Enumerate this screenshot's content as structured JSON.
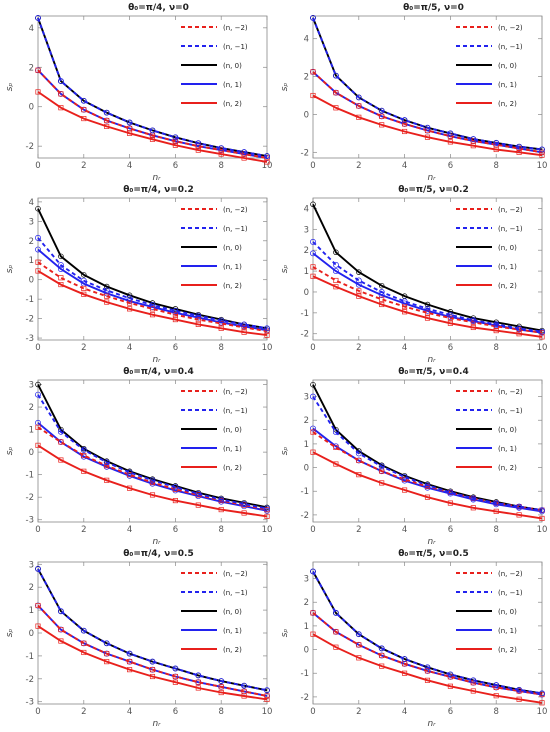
{
  "legend_entries": [
    "(n, −2)",
    "(n, −1)",
    "(n, 0)",
    "(n, 1)",
    "(n, 2)"
  ],
  "series_colors": [
    "#e8201c",
    "#2222ee",
    "#000000",
    "#2222ee",
    "#e8201c"
  ],
  "series_dashed": [
    true,
    true,
    false,
    false,
    false
  ],
  "chart_data": [
    {
      "type": "line",
      "title": "θ₀=π/4, ν=0",
      "xlabel": "nᵣ",
      "ylabel": "sₚ",
      "x": [
        0,
        1,
        2,
        3,
        4,
        5,
        6,
        7,
        8,
        9,
        10
      ],
      "xlim": [
        0,
        10
      ],
      "ylim": [
        -2.6,
        4.6
      ],
      "xticks": [
        "0",
        "2",
        "4",
        "6",
        "8",
        "10"
      ],
      "yticks": [
        "-2",
        "0",
        "2",
        "4"
      ],
      "legend": "top-right",
      "series": [
        {
          "name": "(n, −2)",
          "values": [
            1.85,
            0.65,
            -0.15,
            -0.7,
            -1.1,
            -1.45,
            -1.75,
            -2.0,
            -2.2,
            -2.4,
            -2.6
          ]
        },
        {
          "name": "(n, −1)",
          "values": [
            4.5,
            1.3,
            0.3,
            -0.3,
            -0.8,
            -1.2,
            -1.55,
            -1.85,
            -2.1,
            -2.3,
            -2.5
          ]
        },
        {
          "name": "(n, 0)",
          "values": [
            4.5,
            1.3,
            0.3,
            -0.3,
            -0.8,
            -1.2,
            -1.55,
            -1.85,
            -2.1,
            -2.3,
            -2.5
          ]
        },
        {
          "name": "(n, 1)",
          "values": [
            1.85,
            0.65,
            -0.15,
            -0.7,
            -1.1,
            -1.45,
            -1.75,
            -2.0,
            -2.2,
            -2.4,
            -2.6
          ]
        },
        {
          "name": "(n, 2)",
          "values": [
            0.75,
            -0.05,
            -0.6,
            -1.0,
            -1.35,
            -1.65,
            -1.95,
            -2.2,
            -2.4,
            -2.6,
            -2.8
          ]
        }
      ]
    },
    {
      "type": "line",
      "title": "θ₀=π/5, ν=0",
      "xlabel": "nᵣ",
      "ylabel": "sₚ",
      "x": [
        0,
        1,
        2,
        3,
        4,
        5,
        6,
        7,
        8,
        9,
        10
      ],
      "xlim": [
        0,
        10
      ],
      "ylim": [
        -2.3,
        5.2
      ],
      "xticks": [
        "0",
        "2",
        "4",
        "6",
        "8",
        "10"
      ],
      "yticks": [
        "-2",
        "0",
        "2",
        "4"
      ],
      "legend": "top-right",
      "series": [
        {
          "name": "(n, −2)",
          "values": [
            2.25,
            1.15,
            0.45,
            -0.1,
            -0.5,
            -0.85,
            -1.15,
            -1.4,
            -1.6,
            -1.8,
            -2.0
          ]
        },
        {
          "name": "(n, −1)",
          "values": [
            5.1,
            2.05,
            0.9,
            0.2,
            -0.3,
            -0.7,
            -1.0,
            -1.3,
            -1.5,
            -1.7,
            -1.85
          ]
        },
        {
          "name": "(n, 0)",
          "values": [
            5.1,
            2.05,
            0.9,
            0.2,
            -0.3,
            -0.7,
            -1.0,
            -1.3,
            -1.5,
            -1.7,
            -1.85
          ]
        },
        {
          "name": "(n, 1)",
          "values": [
            2.25,
            1.15,
            0.45,
            -0.1,
            -0.5,
            -0.85,
            -1.15,
            -1.4,
            -1.6,
            -1.8,
            -2.0
          ]
        },
        {
          "name": "(n, 2)",
          "values": [
            1.0,
            0.35,
            -0.15,
            -0.55,
            -0.9,
            -1.2,
            -1.45,
            -1.65,
            -1.85,
            -2.0,
            -2.15
          ]
        }
      ]
    },
    {
      "type": "line",
      "title": "θ₀=π/4, ν=0.2",
      "xlabel": "nᵣ",
      "ylabel": "sₚ",
      "x": [
        0,
        1,
        2,
        3,
        4,
        5,
        6,
        7,
        8,
        9,
        10
      ],
      "xlim": [
        0,
        10
      ],
      "ylim": [
        -3.1,
        4.2
      ],
      "xticks": [
        "0",
        "2",
        "4",
        "6",
        "8",
        "10"
      ],
      "yticks": [
        "-3",
        "-2",
        "-1",
        "0",
        "1",
        "2",
        "3",
        "4"
      ],
      "legend": "top-right",
      "series": [
        {
          "name": "(n, −2)",
          "values": [
            0.9,
            0.1,
            -0.45,
            -0.85,
            -1.2,
            -1.5,
            -1.8,
            -2.05,
            -2.25,
            -2.45,
            -2.65
          ]
        },
        {
          "name": "(n, −1)",
          "values": [
            2.15,
            0.75,
            -0.05,
            -0.55,
            -0.95,
            -1.3,
            -1.6,
            -1.85,
            -2.1,
            -2.3,
            -2.5
          ]
        },
        {
          "name": "(n, 0)",
          "values": [
            3.65,
            1.2,
            0.25,
            -0.35,
            -0.8,
            -1.2,
            -1.5,
            -1.8,
            -2.05,
            -2.3,
            -2.5
          ]
        },
        {
          "name": "(n, 1)",
          "values": [
            1.55,
            0.55,
            -0.2,
            -0.7,
            -1.1,
            -1.4,
            -1.7,
            -1.95,
            -2.2,
            -2.4,
            -2.6
          ]
        },
        {
          "name": "(n, 2)",
          "values": [
            0.45,
            -0.25,
            -0.75,
            -1.15,
            -1.5,
            -1.8,
            -2.05,
            -2.3,
            -2.5,
            -2.7,
            -2.85
          ]
        }
      ]
    },
    {
      "type": "line",
      "title": "θ₀=π/5, ν=0.2",
      "xlabel": "nᵣ",
      "ylabel": "sₚ",
      "x": [
        0,
        1,
        2,
        3,
        4,
        5,
        6,
        7,
        8,
        9,
        10
      ],
      "xlim": [
        0,
        10
      ],
      "ylim": [
        -2.3,
        4.5
      ],
      "xticks": [
        "0",
        "2",
        "4",
        "6",
        "8",
        "10"
      ],
      "yticks": [
        "-2",
        "-1",
        "0",
        "1",
        "2",
        "3",
        "4"
      ],
      "legend": "top-right",
      "series": [
        {
          "name": "(n, −2)",
          "values": [
            1.2,
            0.55,
            0.05,
            -0.35,
            -0.7,
            -1.0,
            -1.25,
            -1.45,
            -1.65,
            -1.8,
            -1.95
          ]
        },
        {
          "name": "(n, −1)",
          "values": [
            2.4,
            1.3,
            0.55,
            0.0,
            -0.45,
            -0.8,
            -1.1,
            -1.35,
            -1.55,
            -1.75,
            -1.9
          ]
        },
        {
          "name": "(n, 0)",
          "values": [
            4.2,
            1.9,
            0.95,
            0.3,
            -0.2,
            -0.6,
            -0.95,
            -1.25,
            -1.45,
            -1.65,
            -1.85
          ]
        },
        {
          "name": "(n, 1)",
          "values": [
            1.85,
            1.0,
            0.35,
            -0.15,
            -0.55,
            -0.9,
            -1.2,
            -1.4,
            -1.6,
            -1.8,
            -1.95
          ]
        },
        {
          "name": "(n, 2)",
          "values": [
            0.75,
            0.25,
            -0.2,
            -0.6,
            -0.95,
            -1.25,
            -1.5,
            -1.7,
            -1.85,
            -2.0,
            -2.15
          ]
        }
      ]
    },
    {
      "type": "line",
      "title": "θ₀=π/4, ν=0.4",
      "xlabel": "nᵣ",
      "ylabel": "sₚ",
      "x": [
        0,
        1,
        2,
        3,
        4,
        5,
        6,
        7,
        8,
        9,
        10
      ],
      "xlim": [
        0,
        10
      ],
      "ylim": [
        -3.1,
        3.2
      ],
      "xticks": [
        "0",
        "2",
        "4",
        "6",
        "8",
        "10"
      ],
      "yticks": [
        "-3",
        "-2",
        "-1",
        "0",
        "1",
        "2",
        "3"
      ],
      "legend": "top-right",
      "series": [
        {
          "name": "(n, −2)",
          "values": [
            1.1,
            0.45,
            -0.15,
            -0.6,
            -1.0,
            -1.35,
            -1.65,
            -1.9,
            -2.15,
            -2.35,
            -2.55
          ]
        },
        {
          "name": "(n, −1)",
          "values": [
            2.55,
            0.9,
            0.1,
            -0.45,
            -0.9,
            -1.25,
            -1.55,
            -1.85,
            -2.1,
            -2.3,
            -2.5
          ]
        },
        {
          "name": "(n, 0)",
          "values": [
            3.0,
            1.0,
            0.15,
            -0.4,
            -0.85,
            -1.2,
            -1.5,
            -1.8,
            -2.05,
            -2.25,
            -2.45
          ]
        },
        {
          "name": "(n, 1)",
          "values": [
            1.3,
            0.45,
            -0.2,
            -0.65,
            -1.05,
            -1.4,
            -1.7,
            -1.95,
            -2.2,
            -2.4,
            -2.6
          ]
        },
        {
          "name": "(n, 2)",
          "values": [
            0.3,
            -0.35,
            -0.85,
            -1.25,
            -1.6,
            -1.9,
            -2.15,
            -2.35,
            -2.55,
            -2.7,
            -2.85
          ]
        }
      ]
    },
    {
      "type": "line",
      "title": "θ₀=π/5, ν=0.4",
      "xlabel": "nᵣ",
      "ylabel": "sₚ",
      "x": [
        0,
        1,
        2,
        3,
        4,
        5,
        6,
        7,
        8,
        9,
        10
      ],
      "xlim": [
        0,
        10
      ],
      "ylim": [
        -2.3,
        3.7
      ],
      "xticks": [
        "0",
        "2",
        "4",
        "6",
        "8",
        "10"
      ],
      "yticks": [
        "-2",
        "-1",
        "0",
        "1",
        "2",
        "3"
      ],
      "legend": "top-right",
      "series": [
        {
          "name": "(n, −2)",
          "values": [
            1.5,
            0.85,
            0.3,
            -0.15,
            -0.5,
            -0.8,
            -1.05,
            -1.3,
            -1.5,
            -1.65,
            -1.8
          ]
        },
        {
          "name": "(n, −1)",
          "values": [
            3.0,
            1.5,
            0.6,
            0.05,
            -0.4,
            -0.75,
            -1.05,
            -1.3,
            -1.5,
            -1.65,
            -1.8
          ]
        },
        {
          "name": "(n, 0)",
          "values": [
            3.5,
            1.6,
            0.7,
            0.1,
            -0.35,
            -0.7,
            -1.0,
            -1.25,
            -1.45,
            -1.65,
            -1.8
          ]
        },
        {
          "name": "(n, 1)",
          "values": [
            1.65,
            0.9,
            0.3,
            -0.15,
            -0.55,
            -0.85,
            -1.1,
            -1.35,
            -1.55,
            -1.7,
            -1.85
          ]
        },
        {
          "name": "(n, 2)",
          "values": [
            0.65,
            0.15,
            -0.3,
            -0.65,
            -0.95,
            -1.25,
            -1.5,
            -1.7,
            -1.85,
            -2.0,
            -2.15
          ]
        }
      ]
    },
    {
      "type": "line",
      "title": "θ₀=π/4, ν=0.5",
      "xlabel": "nᵣ",
      "ylabel": "sₚ",
      "x": [
        0,
        1,
        2,
        3,
        4,
        5,
        6,
        7,
        8,
        9,
        10
      ],
      "xlim": [
        0,
        10
      ],
      "ylim": [
        -3.1,
        3.1
      ],
      "xticks": [
        "0",
        "2",
        "4",
        "6",
        "8",
        "10"
      ],
      "yticks": [
        "-3",
        "-2",
        "-1",
        "0",
        "1",
        "2",
        "3"
      ],
      "legend": "top-right",
      "series": [
        {
          "name": "(n, −2)",
          "values": [
            1.2,
            0.15,
            -0.45,
            -0.9,
            -1.25,
            -1.6,
            -1.9,
            -2.15,
            -2.35,
            -2.55,
            -2.75
          ]
        },
        {
          "name": "(n, −1)",
          "values": [
            2.8,
            0.95,
            0.1,
            -0.45,
            -0.9,
            -1.25,
            -1.55,
            -1.85,
            -2.1,
            -2.3,
            -2.5
          ]
        },
        {
          "name": "(n, 0)",
          "values": [
            2.8,
            0.95,
            0.1,
            -0.45,
            -0.9,
            -1.25,
            -1.55,
            -1.85,
            -2.1,
            -2.3,
            -2.5
          ]
        },
        {
          "name": "(n, 1)",
          "values": [
            1.2,
            0.15,
            -0.45,
            -0.9,
            -1.25,
            -1.6,
            -1.9,
            -2.15,
            -2.35,
            -2.55,
            -2.75
          ]
        },
        {
          "name": "(n, 2)",
          "values": [
            0.3,
            -0.35,
            -0.85,
            -1.25,
            -1.6,
            -1.9,
            -2.15,
            -2.4,
            -2.6,
            -2.75,
            -2.9
          ]
        }
      ]
    },
    {
      "type": "line",
      "title": "θ₀=π/5, ν=0.5",
      "xlabel": "nᵣ",
      "ylabel": "sₚ",
      "x": [
        0,
        1,
        2,
        3,
        4,
        5,
        6,
        7,
        8,
        9,
        10
      ],
      "xlim": [
        0,
        10
      ],
      "ylim": [
        -2.3,
        3.7
      ],
      "xticks": [
        "0",
        "2",
        "4",
        "6",
        "8",
        "10"
      ],
      "yticks": [
        "-2",
        "-1",
        "0",
        "1",
        "2",
        "3"
      ],
      "legend": "top-right",
      "series": [
        {
          "name": "(n, −2)",
          "values": [
            1.55,
            0.75,
            0.2,
            -0.25,
            -0.6,
            -0.9,
            -1.15,
            -1.4,
            -1.6,
            -1.75,
            -1.9
          ]
        },
        {
          "name": "(n, −1)",
          "values": [
            3.3,
            1.55,
            0.65,
            0.05,
            -0.4,
            -0.75,
            -1.05,
            -1.3,
            -1.5,
            -1.7,
            -1.85
          ]
        },
        {
          "name": "(n, 0)",
          "values": [
            3.3,
            1.55,
            0.65,
            0.05,
            -0.4,
            -0.75,
            -1.05,
            -1.3,
            -1.5,
            -1.7,
            -1.85
          ]
        },
        {
          "name": "(n, 1)",
          "values": [
            1.55,
            0.75,
            0.2,
            -0.25,
            -0.6,
            -0.9,
            -1.15,
            -1.4,
            -1.6,
            -1.75,
            -1.9
          ]
        },
        {
          "name": "(n, 2)",
          "values": [
            0.65,
            0.1,
            -0.35,
            -0.7,
            -1.0,
            -1.3,
            -1.55,
            -1.75,
            -1.95,
            -2.1,
            -2.25
          ]
        }
      ]
    }
  ]
}
